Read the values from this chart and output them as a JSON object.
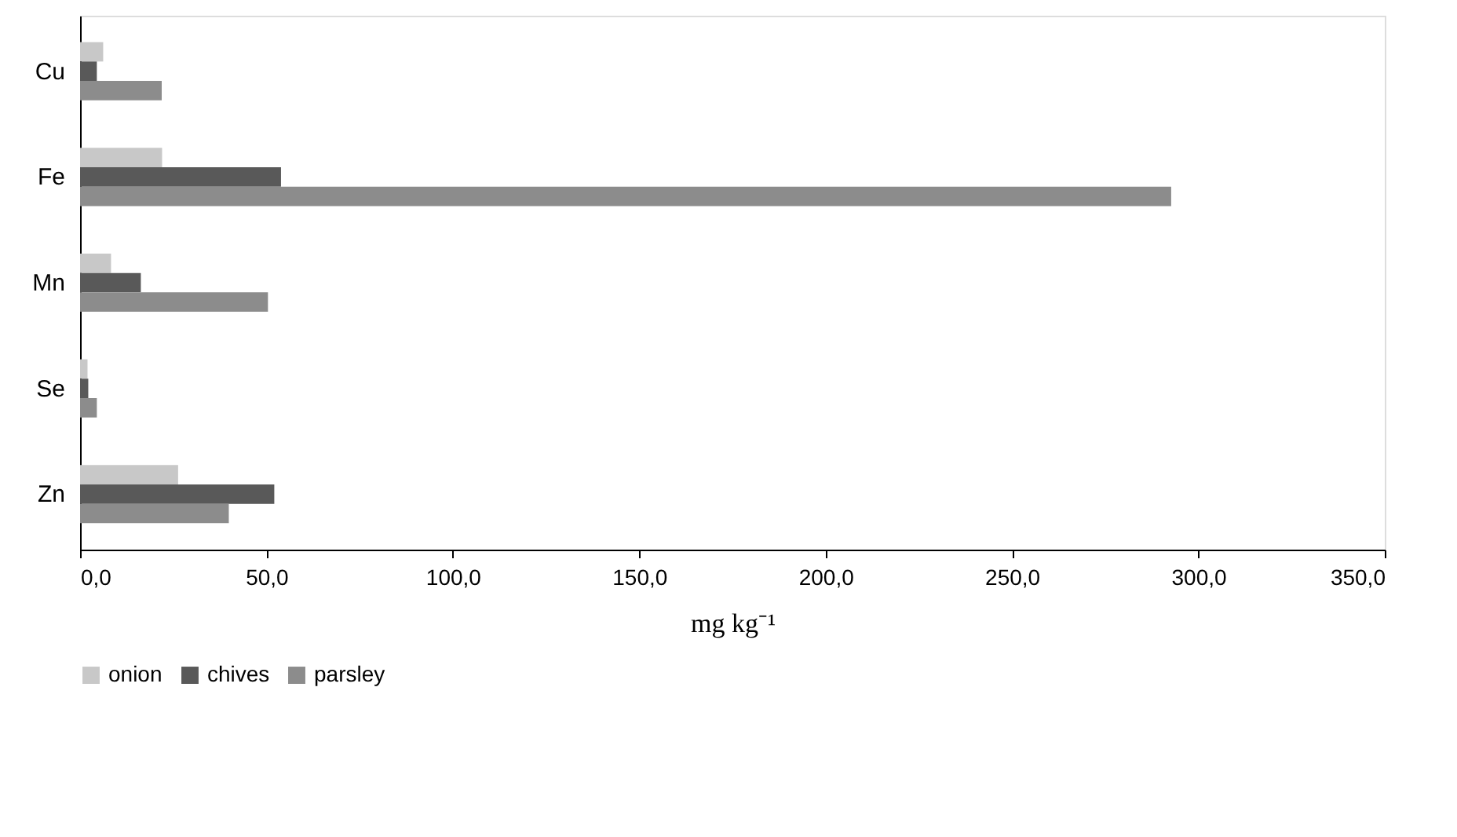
{
  "chart_data": {
    "type": "bar",
    "orientation": "horizontal",
    "xlabel": "mg kg⁻¹",
    "categories": [
      "Cu",
      "Fe",
      "Mn",
      "Se",
      "Zn"
    ],
    "series": [
      {
        "name": "onion",
        "color": "#c8c8c8",
        "values": [
          6.2,
          22.0,
          8.3,
          2.0,
          26.3
        ]
      },
      {
        "name": "chives",
        "color": "#595959",
        "values": [
          4.5,
          53.9,
          16.3,
          2.2,
          52.1
        ]
      },
      {
        "name": "parsley",
        "color": "#8c8c8c",
        "values": [
          21.9,
          292.7,
          50.4,
          4.5,
          39.9
        ]
      }
    ],
    "xlim": [
      0,
      350
    ],
    "xticks": [
      {
        "value": 0,
        "label": "0,0"
      },
      {
        "value": 50,
        "label": "50,0"
      },
      {
        "value": 100,
        "label": "100,0"
      },
      {
        "value": 150,
        "label": "150,0"
      },
      {
        "value": 200,
        "label": "200,0"
      },
      {
        "value": 250,
        "label": "250,0"
      },
      {
        "value": 300,
        "label": "300,0"
      },
      {
        "value": 350,
        "label": "350,0"
      }
    ],
    "grid": false,
    "legend": "bottom"
  }
}
